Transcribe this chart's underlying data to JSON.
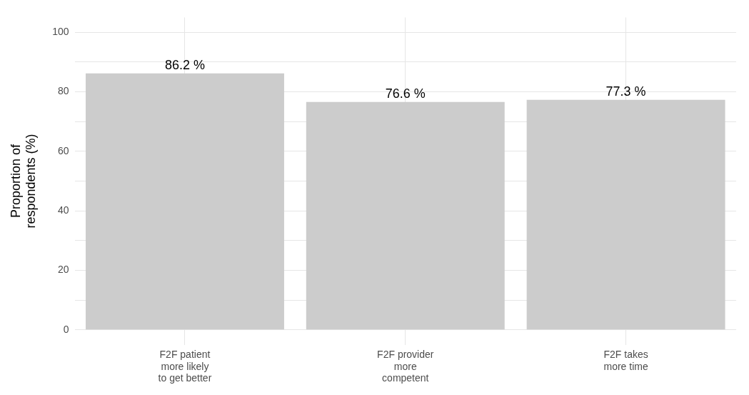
{
  "chart_data": {
    "type": "bar",
    "ylabel": "Proportion of\nrespondents (%)",
    "categories": [
      "F2F patient\nmore likely\nto get better",
      "F2F provider\nmore\ncompetent",
      "F2F takes\nmore time"
    ],
    "values": [
      86.2,
      76.6,
      77.3
    ],
    "value_labels": [
      "86.2 %",
      "76.6 %",
      "77.3 %"
    ],
    "color": "#cccccc",
    "ylim": [
      -5,
      105
    ],
    "yticks": [
      0,
      {
        "value": 10,
        "label": null
      },
      20,
      {
        "value": 30,
        "label": null
      },
      40,
      {
        "value": 50,
        "label": null
      },
      60,
      {
        "value": 70,
        "label": null
      },
      80,
      {
        "value": 90,
        "label": null
      },
      100
    ],
    "grid": true
  }
}
